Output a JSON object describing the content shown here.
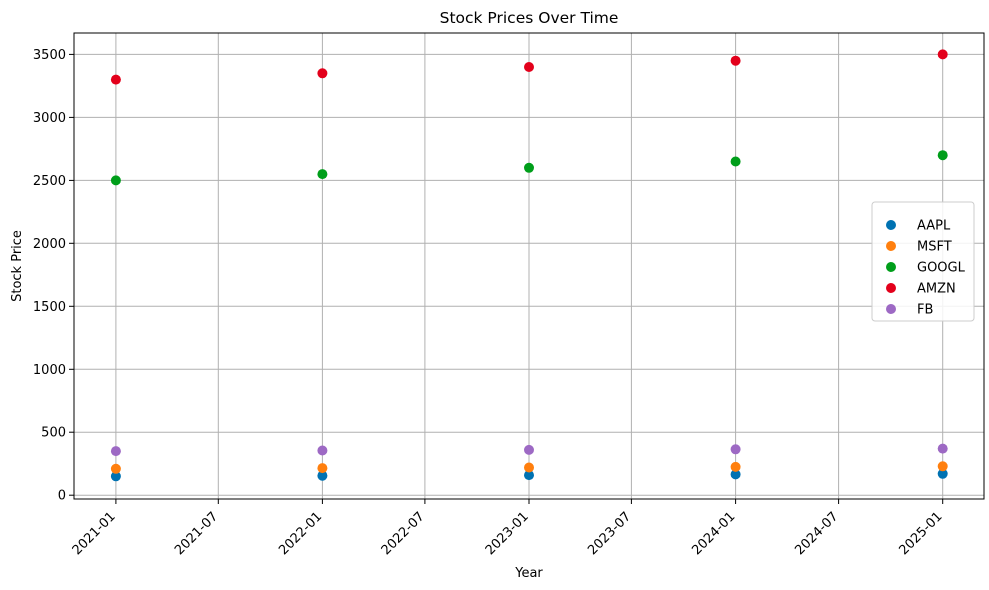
{
  "chart_data": {
    "type": "scatter",
    "title": "Stock Prices Over Time",
    "xlabel": "Year",
    "ylabel": "Stock Price",
    "x_axis": "date",
    "x": [
      "2021-01-01",
      "2022-01-01",
      "2023-01-01",
      "2024-01-01",
      "2025-01-01"
    ],
    "xlim": [
      "2020-10-19",
      "2025-03-15"
    ],
    "ylim": [
      -30,
      3670
    ],
    "x_ticks": [
      "2021-01-01",
      "2021-07-01",
      "2022-01-01",
      "2022-07-01",
      "2023-01-01",
      "2023-07-01",
      "2024-01-01",
      "2024-07-01",
      "2025-01-01"
    ],
    "x_tick_labels": [
      "2021-01",
      "2021-07",
      "2022-01",
      "2022-07",
      "2023-01",
      "2023-07",
      "2024-01",
      "2024-07",
      "2025-01"
    ],
    "y_ticks": [
      0,
      500,
      1000,
      1500,
      2000,
      2500,
      3000,
      3500
    ],
    "y_tick_labels": [
      "0",
      "500",
      "1000",
      "1500",
      "2000",
      "2500",
      "3000",
      "3500"
    ],
    "grid": true,
    "legend_position": "center-right",
    "series": [
      {
        "name": "AAPL",
        "color": "#0072b2",
        "values": [
          150,
          155,
          160,
          165,
          170
        ]
      },
      {
        "name": "MSFT",
        "color": "#ff7f0e",
        "values": [
          210,
          215,
          220,
          225,
          230
        ]
      },
      {
        "name": "GOOGL",
        "color": "#009e1a",
        "values": [
          2500,
          2550,
          2600,
          2650,
          2700
        ]
      },
      {
        "name": "AMZN",
        "color": "#e3001b",
        "values": [
          3300,
          3350,
          3400,
          3450,
          3500
        ]
      },
      {
        "name": "FB",
        "color": "#9d69c4",
        "values": [
          350,
          355,
          360,
          365,
          370
        ]
      }
    ]
  }
}
